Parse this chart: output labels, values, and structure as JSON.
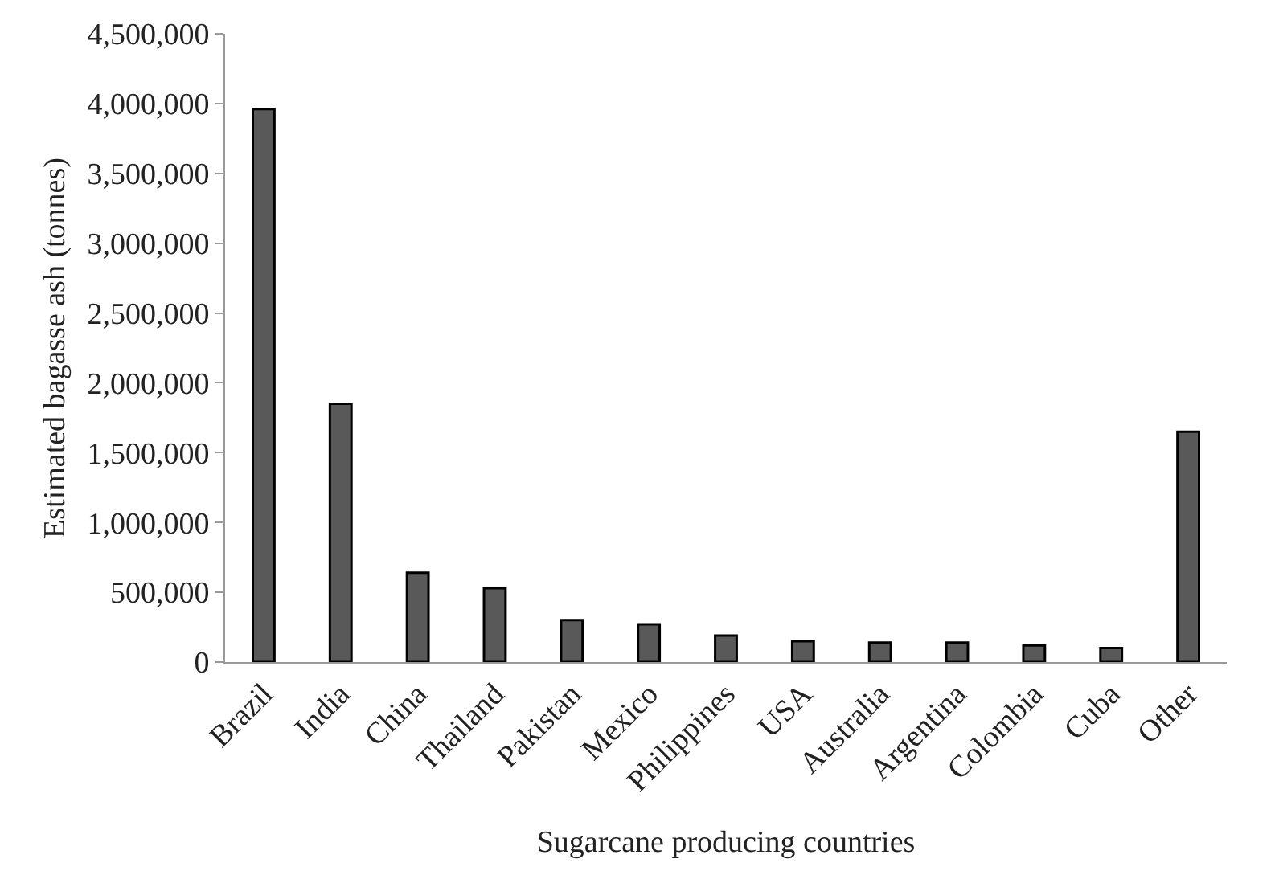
{
  "chart_data": {
    "type": "bar",
    "xlabel": "Sugarcane producing countries",
    "ylabel": "Estimated bagasse ash (tonnes)",
    "categories": [
      "Brazil",
      "India",
      "China",
      "Thailand",
      "Pakistan",
      "Mexico",
      "Philippines",
      "USA",
      "Australia",
      "Argentina",
      "Colombia",
      "Cuba",
      "Other"
    ],
    "values": [
      3960000,
      1850000,
      640000,
      530000,
      300000,
      270000,
      190000,
      150000,
      140000,
      140000,
      120000,
      100000,
      1650000
    ],
    "color": "#595959",
    "ylim": [
      0,
      4500000
    ],
    "yticks": [
      {
        "value": 0,
        "label": "0"
      },
      {
        "value": 500000,
        "label": "500,000"
      },
      {
        "value": 1000000,
        "label": "1,000,000"
      },
      {
        "value": 1500000,
        "label": "1,500,000"
      },
      {
        "value": 2000000,
        "label": "2,000,000"
      },
      {
        "value": 2500000,
        "label": "2,500,000"
      },
      {
        "value": 3000000,
        "label": "3,000,000"
      },
      {
        "value": 3500000,
        "label": "3,500,000"
      },
      {
        "value": 4000000,
        "label": "4,000,000"
      },
      {
        "value": 4500000,
        "label": "4,500,000"
      }
    ],
    "grid": false
  }
}
